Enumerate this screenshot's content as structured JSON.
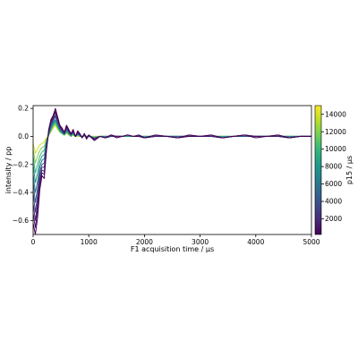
{
  "chart_data": {
    "type": "line",
    "title": "",
    "xlabel": "F1 acquisition time / μs",
    "ylabel": "intensity / pp",
    "xlim": [
      0,
      5000
    ],
    "ylim": [
      -0.7,
      0.22
    ],
    "xticks": [
      0,
      1000,
      2000,
      3000,
      4000,
      5000
    ],
    "yticks": [
      -0.6,
      -0.4,
      -0.2,
      0.0,
      0.2
    ],
    "ytick_labels": [
      "−0.6",
      "−0.4",
      "−0.2",
      "0.0",
      "0.2"
    ],
    "grid": false,
    "legend": "none",
    "colorbar": {
      "label": "p15 / μs",
      "range": [
        200,
        15000
      ],
      "ticks": [
        2000,
        4000,
        6000,
        8000,
        10000,
        12000,
        14000
      ],
      "colormap": "viridis",
      "colors": [
        "#440154",
        "#482878",
        "#3e4989",
        "#31688e",
        "#26828e",
        "#1f9e89",
        "#35b779",
        "#6ece58",
        "#b5de2b",
        "#fde725"
      ]
    },
    "series_x": [
      0,
      40,
      80,
      120,
      160,
      200,
      240,
      280,
      320,
      360,
      400,
      440,
      480,
      520,
      560,
      600,
      640,
      680,
      720,
      760,
      800,
      840,
      880,
      920,
      960,
      1000,
      1100,
      1200,
      1300,
      1400,
      1500,
      1600,
      1700,
      1800,
      1900,
      2000,
      2200,
      2400,
      2600,
      2800,
      3000,
      3200,
      3400,
      3600,
      3800,
      4000,
      4200,
      4400,
      4600,
      4800,
      5000
    ],
    "series": [
      {
        "p15": 200,
        "y": [
          -0.62,
          -0.7,
          -0.58,
          -0.38,
          -0.28,
          -0.3,
          -0.1,
          0.05,
          0.12,
          0.15,
          0.2,
          0.14,
          0.08,
          0.06,
          0.03,
          0.08,
          0.05,
          0.02,
          0.05,
          0.0,
          0.04,
          0.02,
          -0.01,
          0.02,
          -0.02,
          0.01,
          -0.03,
          0.0,
          -0.01,
          0.01,
          -0.01,
          0.0,
          0.01,
          0.0,
          0.01,
          -0.01,
          0.01,
          0.0,
          -0.01,
          0.01,
          0.0,
          0.01,
          -0.01,
          0.0,
          0.01,
          -0.01,
          0.0,
          0.01,
          -0.01,
          0.0,
          0.0
        ]
      },
      {
        "p15": 900,
        "y": [
          -0.55,
          -0.65,
          -0.52,
          -0.34,
          -0.26,
          -0.27,
          -0.09,
          0.04,
          0.11,
          0.14,
          0.18,
          0.13,
          0.07,
          0.05,
          0.03,
          0.07,
          0.04,
          0.02,
          0.04,
          0.0,
          0.03,
          0.02,
          -0.01,
          0.02,
          -0.01,
          0.01,
          -0.02,
          0.0,
          -0.01,
          0.01,
          0.0,
          0.0,
          0.01,
          0.0,
          0.0,
          -0.01,
          0.01,
          0.0,
          -0.01,
          0.0,
          0.0,
          0.01,
          -0.01,
          0.0,
          0.01,
          0.0,
          0.0,
          0.01,
          -0.01,
          0.0,
          0.0
        ]
      },
      {
        "p15": 1800,
        "y": [
          -0.48,
          -0.6,
          -0.47,
          -0.31,
          -0.24,
          -0.25,
          -0.08,
          0.03,
          0.1,
          0.13,
          0.17,
          0.12,
          0.07,
          0.05,
          0.02,
          0.07,
          0.04,
          0.01,
          0.04,
          0.0,
          0.03,
          0.01,
          -0.01,
          0.02,
          -0.01,
          0.01,
          -0.02,
          0.0,
          -0.01,
          0.01,
          0.0,
          0.0,
          0.01,
          0.0,
          0.01,
          -0.01,
          0.0,
          0.0,
          -0.01,
          0.01,
          0.0,
          0.0,
          -0.01,
          0.0,
          0.01,
          0.0,
          0.0,
          0.0,
          -0.01,
          0.0,
          0.0
        ]
      },
      {
        "p15": 3000,
        "y": [
          -0.4,
          -0.54,
          -0.42,
          -0.28,
          -0.22,
          -0.22,
          -0.07,
          0.03,
          0.09,
          0.12,
          0.15,
          0.11,
          0.06,
          0.04,
          0.02,
          0.06,
          0.03,
          0.01,
          0.03,
          0.0,
          0.02,
          0.01,
          -0.01,
          0.01,
          -0.01,
          0.01,
          -0.02,
          0.0,
          -0.01,
          0.0,
          0.0,
          0.0,
          0.01,
          0.0,
          0.0,
          -0.01,
          0.0,
          0.0,
          -0.01,
          0.0,
          0.0,
          0.0,
          -0.01,
          0.0,
          0.01,
          0.0,
          0.0,
          0.0,
          -0.01,
          0.0,
          0.0
        ]
      },
      {
        "p15": 4500,
        "y": [
          -0.33,
          -0.47,
          -0.37,
          -0.25,
          -0.2,
          -0.19,
          -0.06,
          0.02,
          0.08,
          0.11,
          0.14,
          0.1,
          0.06,
          0.04,
          0.02,
          0.05,
          0.03,
          0.01,
          0.03,
          0.0,
          0.02,
          0.01,
          -0.01,
          0.01,
          -0.01,
          0.0,
          -0.01,
          0.0,
          -0.01,
          0.0,
          0.0,
          0.0,
          0.01,
          0.0,
          0.0,
          -0.01,
          0.0,
          0.0,
          0.0,
          0.0,
          0.0,
          0.0,
          -0.01,
          0.0,
          0.0,
          0.0,
          0.0,
          0.0,
          -0.01,
          0.0,
          0.0
        ]
      },
      {
        "p15": 6000,
        "y": [
          -0.27,
          -0.4,
          -0.32,
          -0.22,
          -0.17,
          -0.16,
          -0.05,
          0.02,
          0.07,
          0.1,
          0.12,
          0.09,
          0.05,
          0.03,
          0.02,
          0.05,
          0.03,
          0.01,
          0.03,
          0.0,
          0.02,
          0.01,
          0.0,
          0.01,
          -0.01,
          0.0,
          -0.01,
          0.0,
          0.0,
          0.0,
          0.0,
          0.0,
          0.01,
          0.0,
          0.0,
          -0.01,
          0.0,
          0.0,
          0.0,
          0.0,
          0.0,
          0.0,
          -0.01,
          0.0,
          0.0,
          0.0,
          0.0,
          0.0,
          0.0,
          0.0,
          0.0
        ]
      },
      {
        "p15": 8000,
        "y": [
          -0.2,
          -0.33,
          -0.26,
          -0.18,
          -0.14,
          -0.13,
          -0.04,
          0.01,
          0.06,
          0.09,
          0.11,
          0.08,
          0.04,
          0.03,
          0.01,
          0.04,
          0.02,
          0.01,
          0.02,
          0.0,
          0.01,
          0.01,
          0.0,
          0.01,
          0.0,
          0.0,
          -0.01,
          0.0,
          0.0,
          0.0,
          0.0,
          0.0,
          0.0,
          0.0,
          0.0,
          0.0,
          0.0,
          0.0,
          0.0,
          0.0,
          0.0,
          0.0,
          0.0,
          0.0,
          0.0,
          0.0,
          0.0,
          0.0,
          0.0,
          0.0,
          0.0
        ]
      },
      {
        "p15": 10000,
        "y": [
          -0.14,
          -0.26,
          -0.2,
          -0.14,
          -0.11,
          -0.1,
          -0.03,
          0.01,
          0.05,
          0.08,
          0.1,
          0.07,
          0.04,
          0.02,
          0.01,
          0.03,
          0.02,
          0.0,
          0.02,
          0.0,
          0.01,
          0.0,
          0.0,
          0.01,
          0.0,
          0.0,
          -0.01,
          0.0,
          0.0,
          0.0,
          0.0,
          0.0,
          0.0,
          0.0,
          0.0,
          0.0,
          0.0,
          0.0,
          0.0,
          0.0,
          0.0,
          0.0,
          0.0,
          0.0,
          0.0,
          0.0,
          0.0,
          0.0,
          0.0,
          0.0,
          0.0
        ]
      },
      {
        "p15": 12000,
        "y": [
          -0.09,
          -0.19,
          -0.14,
          -0.1,
          -0.08,
          -0.07,
          -0.02,
          0.01,
          0.04,
          0.07,
          0.09,
          0.06,
          0.03,
          0.02,
          0.01,
          0.03,
          0.01,
          0.0,
          0.01,
          0.0,
          0.01,
          0.0,
          0.0,
          0.0,
          0.0,
          0.0,
          0.0,
          0.0,
          0.0,
          0.0,
          0.0,
          0.0,
          0.0,
          0.0,
          0.0,
          0.0,
          0.0,
          0.0,
          0.0,
          0.0,
          0.0,
          0.0,
          0.0,
          0.0,
          0.0,
          0.0,
          0.0,
          0.0,
          0.0,
          0.0,
          0.0
        ]
      },
      {
        "p15": 14000,
        "y": [
          -0.05,
          -0.12,
          -0.09,
          -0.06,
          -0.05,
          -0.04,
          -0.01,
          0.01,
          0.03,
          0.06,
          0.08,
          0.05,
          0.03,
          0.02,
          0.01,
          0.02,
          0.01,
          0.0,
          0.01,
          0.0,
          0.0,
          0.0,
          0.0,
          0.0,
          0.0,
          0.0,
          0.0,
          0.0,
          0.0,
          0.0,
          0.0,
          0.0,
          0.0,
          0.0,
          0.0,
          0.0,
          0.0,
          0.0,
          0.0,
          0.0,
          0.0,
          0.0,
          0.0,
          0.0,
          0.0,
          0.0,
          0.0,
          0.0,
          0.0,
          0.0,
          0.0
        ]
      }
    ]
  }
}
